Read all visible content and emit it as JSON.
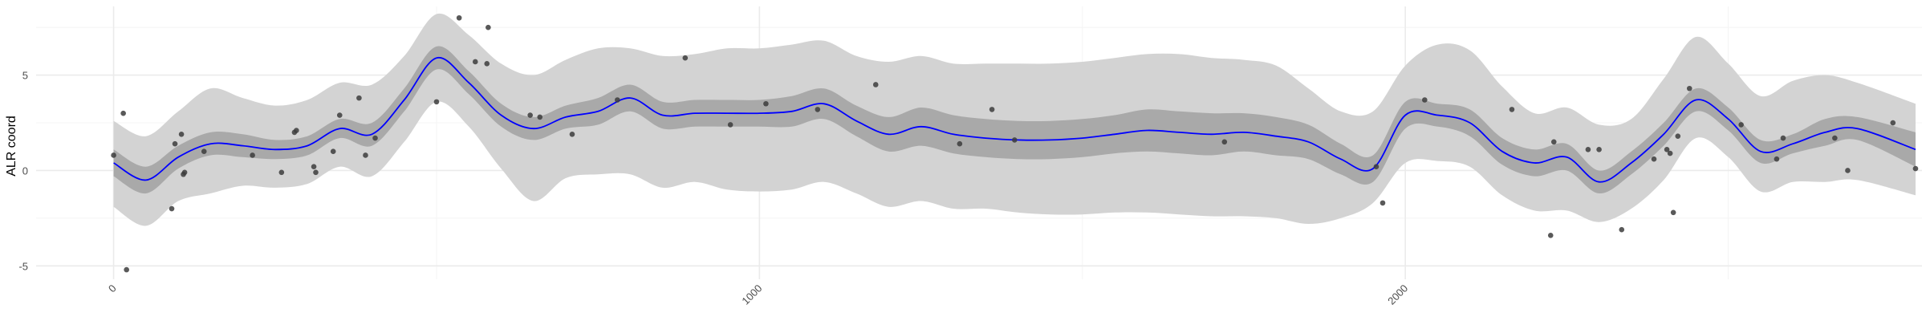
{
  "chart_data": {
    "type": "line",
    "title": "",
    "xlabel": "",
    "ylabel": "ALR coord",
    "xlim": [
      -120,
      2800
    ],
    "ylim": [
      -5.7,
      8.6
    ],
    "x_ticks": [
      0,
      1000,
      2000
    ],
    "x_tick_labels": [
      "0",
      "1000",
      "2000"
    ],
    "y_ticks": [
      -5,
      0,
      5
    ],
    "y_tick_labels": [
      "-5",
      "0",
      "5"
    ],
    "grid": true,
    "legend": "none",
    "colors": {
      "line": "#0000ff",
      "inner_band": "#a9a9a9",
      "outer_band": "#d3d3d3",
      "points": "#3c3c3c",
      "grid": "#ebebeb"
    },
    "series": [
      {
        "role": "fit",
        "x": [
          0,
          50,
          100,
          150,
          200,
          250,
          300,
          350,
          400,
          450,
          500,
          550,
          600,
          650,
          700,
          750,
          800,
          850,
          900,
          950,
          1000,
          1050,
          1100,
          1150,
          1200,
          1250,
          1300,
          1350,
          1400,
          1450,
          1500,
          1550,
          1600,
          1650,
          1700,
          1750,
          1800,
          1850,
          1900,
          1950,
          2000,
          2050,
          2100,
          2150,
          2200,
          2250,
          2300,
          2350,
          2400,
          2450,
          2500,
          2550,
          2600,
          2650,
          2700,
          2790
        ],
        "values": [
          0.4,
          -0.5,
          0.7,
          1.4,
          1.3,
          1.1,
          1.3,
          2.2,
          1.9,
          3.7,
          5.9,
          4.6,
          2.9,
          2.2,
          2.8,
          3.1,
          3.8,
          2.9,
          3.0,
          3.0,
          3.0,
          3.1,
          3.5,
          2.6,
          1.9,
          2.3,
          1.9,
          1.7,
          1.6,
          1.6,
          1.7,
          1.9,
          2.1,
          2.0,
          1.9,
          2.0,
          1.8,
          1.5,
          0.6,
          0.1,
          2.9,
          2.9,
          2.5,
          1.0,
          0.4,
          0.7,
          -0.6,
          0.4,
          1.9,
          3.7,
          2.7,
          1.0,
          1.4,
          2.0,
          2.2,
          1.1
        ]
      },
      {
        "role": "inner_band_lower",
        "values": [
          -0.3,
          -1.2,
          0.1,
          0.8,
          0.7,
          0.6,
          0.8,
          1.7,
          1.3,
          3.1,
          5.3,
          4.0,
          2.3,
          1.6,
          2.2,
          2.4,
          3.1,
          2.2,
          2.3,
          2.3,
          2.3,
          2.3,
          2.7,
          1.8,
          1.0,
          1.3,
          0.9,
          0.7,
          0.6,
          0.6,
          0.7,
          0.9,
          1.0,
          0.9,
          0.8,
          1.0,
          0.8,
          0.6,
          -0.2,
          -0.6,
          2.2,
          2.3,
          1.8,
          0.3,
          -0.3,
          0.0,
          -1.2,
          -0.2,
          1.3,
          3.1,
          2.1,
          0.4,
          0.9,
          1.3,
          1.6,
          0.2
        ]
      },
      {
        "role": "inner_band_upper",
        "values": [
          1.1,
          0.2,
          1.3,
          2.0,
          1.9,
          1.6,
          1.8,
          2.7,
          2.5,
          4.3,
          6.5,
          5.2,
          3.5,
          2.8,
          3.4,
          3.8,
          4.5,
          3.6,
          3.7,
          3.7,
          3.7,
          3.9,
          4.3,
          3.4,
          2.8,
          3.3,
          2.9,
          2.7,
          2.6,
          2.6,
          2.7,
          2.9,
          3.2,
          3.1,
          3.0,
          3.0,
          2.8,
          2.4,
          1.4,
          0.8,
          3.6,
          3.5,
          3.2,
          1.7,
          1.1,
          1.4,
          0.0,
          1.0,
          2.5,
          4.3,
          3.3,
          1.6,
          1.9,
          2.7,
          2.8,
          2.0
        ]
      },
      {
        "role": "outer_band_lower",
        "values": [
          -1.9,
          -2.9,
          -1.6,
          -1.2,
          -0.8,
          -0.9,
          -0.7,
          0.2,
          -0.3,
          1.5,
          3.6,
          2.3,
          0.1,
          -1.6,
          -0.4,
          -0.2,
          -0.2,
          -0.9,
          -0.6,
          -1.0,
          -1.1,
          -1.0,
          -0.6,
          -1.2,
          -1.9,
          -1.6,
          -2.0,
          -2.0,
          -2.2,
          -2.3,
          -2.3,
          -2.2,
          -2.2,
          -2.3,
          -2.4,
          -2.4,
          -2.5,
          -2.8,
          -2.5,
          -1.7,
          0.4,
          0.5,
          0.2,
          -1.3,
          -2.1,
          -2.1,
          -2.7,
          -2.0,
          -0.5,
          1.7,
          0.7,
          -1.1,
          -0.6,
          -0.6,
          -0.5,
          -1.3
        ]
      },
      {
        "role": "outer_band_upper",
        "values": [
          2.6,
          1.8,
          3.1,
          4.3,
          3.8,
          3.4,
          3.7,
          4.6,
          4.5,
          6.0,
          8.2,
          7.1,
          5.6,
          5.0,
          5.8,
          6.4,
          6.4,
          6.0,
          6.1,
          6.4,
          6.4,
          6.6,
          6.8,
          6.0,
          5.7,
          6.0,
          5.6,
          5.6,
          5.6,
          5.6,
          5.7,
          5.9,
          6.1,
          6.1,
          5.9,
          5.8,
          5.5,
          4.3,
          3.1,
          3.1,
          5.5,
          6.6,
          6.3,
          4.4,
          3.0,
          3.3,
          2.4,
          2.7,
          4.8,
          7.0,
          5.6,
          3.9,
          4.7,
          5.0,
          4.6,
          3.5
        ]
      },
      {
        "role": "observations",
        "points": [
          [
            0,
            0.8
          ],
          [
            15,
            3.0
          ],
          [
            20,
            -5.2
          ],
          [
            90,
            -2.0
          ],
          [
            95,
            1.4
          ],
          [
            105,
            1.9
          ],
          [
            108,
            -0.2
          ],
          [
            110,
            -0.1
          ],
          [
            140,
            1.0
          ],
          [
            215,
            0.8
          ],
          [
            260,
            -0.1
          ],
          [
            280,
            2.0
          ],
          [
            283,
            2.1
          ],
          [
            310,
            0.2
          ],
          [
            313,
            -0.1
          ],
          [
            340,
            1.0
          ],
          [
            350,
            2.9
          ],
          [
            380,
            3.8
          ],
          [
            390,
            0.8
          ],
          [
            405,
            1.7
          ],
          [
            500,
            3.6
          ],
          [
            535,
            8.0
          ],
          [
            560,
            5.7
          ],
          [
            578,
            5.6
          ],
          [
            580,
            7.5
          ],
          [
            645,
            2.9
          ],
          [
            660,
            2.8
          ],
          [
            710,
            1.9
          ],
          [
            780,
            3.7
          ],
          [
            885,
            5.9
          ],
          [
            955,
            2.4
          ],
          [
            1010,
            3.5
          ],
          [
            1090,
            3.2
          ],
          [
            1180,
            4.5
          ],
          [
            1310,
            1.4
          ],
          [
            1360,
            3.2
          ],
          [
            1395,
            1.6
          ],
          [
            1720,
            1.5
          ],
          [
            1955,
            0.2
          ],
          [
            1965,
            -1.7
          ],
          [
            2030,
            3.7
          ],
          [
            2165,
            3.2
          ],
          [
            2225,
            -3.4
          ],
          [
            2230,
            1.5
          ],
          [
            2283,
            1.1
          ],
          [
            2300,
            1.1
          ],
          [
            2335,
            -3.1
          ],
          [
            2385,
            0.6
          ],
          [
            2405,
            1.1
          ],
          [
            2410,
            0.9
          ],
          [
            2415,
            -2.2
          ],
          [
            2422,
            1.8
          ],
          [
            2440,
            4.3
          ],
          [
            2520,
            2.4
          ],
          [
            2575,
            0.6
          ],
          [
            2585,
            1.7
          ],
          [
            2665,
            1.7
          ],
          [
            2685,
            0.0
          ],
          [
            2755,
            2.5
          ],
          [
            2790,
            0.1
          ]
        ]
      }
    ]
  }
}
